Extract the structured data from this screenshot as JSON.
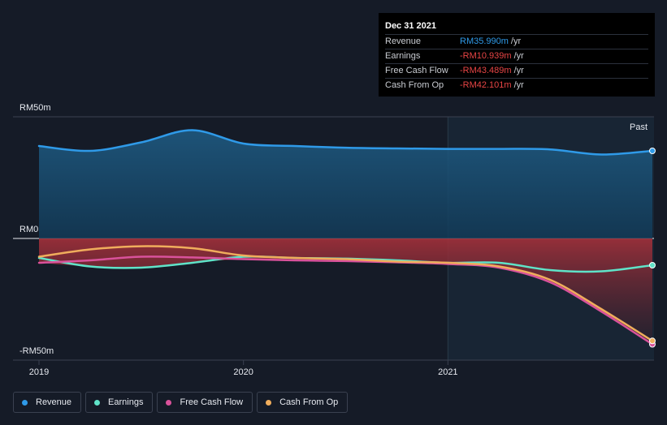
{
  "tooltip": {
    "date": "Dec 31 2021",
    "rows": [
      {
        "label": "Revenue",
        "value": "RM35.990m",
        "unit": "/yr",
        "color": "#2f9ae8"
      },
      {
        "label": "Earnings",
        "value": "-RM10.939m",
        "unit": "/yr",
        "color": "#e84545"
      },
      {
        "label": "Free Cash Flow",
        "value": "-RM43.489m",
        "unit": "/yr",
        "color": "#e84545"
      },
      {
        "label": "Cash From Op",
        "value": "-RM42.101m",
        "unit": "/yr",
        "color": "#e84545"
      }
    ]
  },
  "past_label": "Past",
  "chart_data": {
    "type": "area",
    "x_ticks": [
      "2019",
      "2020",
      "2021"
    ],
    "y_tick_labels": [
      {
        "value": 50,
        "label": "RM50m"
      },
      {
        "value": 0,
        "label": "RM0"
      },
      {
        "value": -50,
        "label": "-RM50m"
      }
    ],
    "ylim": [
      -50,
      50
    ],
    "xlim": [
      2019.0,
      2022.0
    ],
    "past_region_start": 2021.0,
    "series": [
      {
        "name": "Revenue",
        "color": "#2f9ae8",
        "x": [
          2019.0,
          2019.25,
          2019.5,
          2019.75,
          2020.0,
          2020.25,
          2020.5,
          2020.75,
          2021.0,
          2021.25,
          2021.5,
          2021.75,
          2022.0
        ],
        "y": [
          38,
          36,
          39.5,
          44.5,
          39,
          38,
          37.3,
          37,
          36.8,
          36.8,
          36.6,
          34.5,
          36
        ]
      },
      {
        "name": "Earnings",
        "color": "#5fe3c8",
        "x": [
          2019.0,
          2019.25,
          2019.5,
          2019.75,
          2020.0,
          2020.25,
          2020.5,
          2020.75,
          2021.0,
          2021.25,
          2021.5,
          2021.75,
          2022.0
        ],
        "y": [
          -8,
          -11.5,
          -12,
          -10,
          -7.5,
          -8,
          -8.3,
          -9,
          -10,
          -10,
          -13,
          -13.5,
          -11
        ]
      },
      {
        "name": "Free Cash Flow",
        "color": "#d9529b",
        "x": [
          2019.0,
          2019.25,
          2019.5,
          2019.75,
          2020.0,
          2020.25,
          2020.5,
          2020.75,
          2021.0,
          2021.25,
          2021.5,
          2021.75,
          2022.0
        ],
        "y": [
          -10,
          -9,
          -7.5,
          -7.8,
          -8.5,
          -9,
          -9.3,
          -9.8,
          -10.5,
          -12,
          -18,
          -30,
          -43.5
        ]
      },
      {
        "name": "Cash From Op",
        "color": "#f0ad5c",
        "x": [
          2019.0,
          2019.25,
          2019.5,
          2019.75,
          2020.0,
          2020.25,
          2020.5,
          2020.75,
          2021.0,
          2021.25,
          2021.5,
          2021.75,
          2022.0
        ],
        "y": [
          -7.5,
          -4.5,
          -3.2,
          -4,
          -7,
          -8,
          -8.5,
          -9.5,
          -10,
          -11.5,
          -17,
          -29,
          -42.1
        ]
      }
    ],
    "legend_position": "bottom-left"
  }
}
